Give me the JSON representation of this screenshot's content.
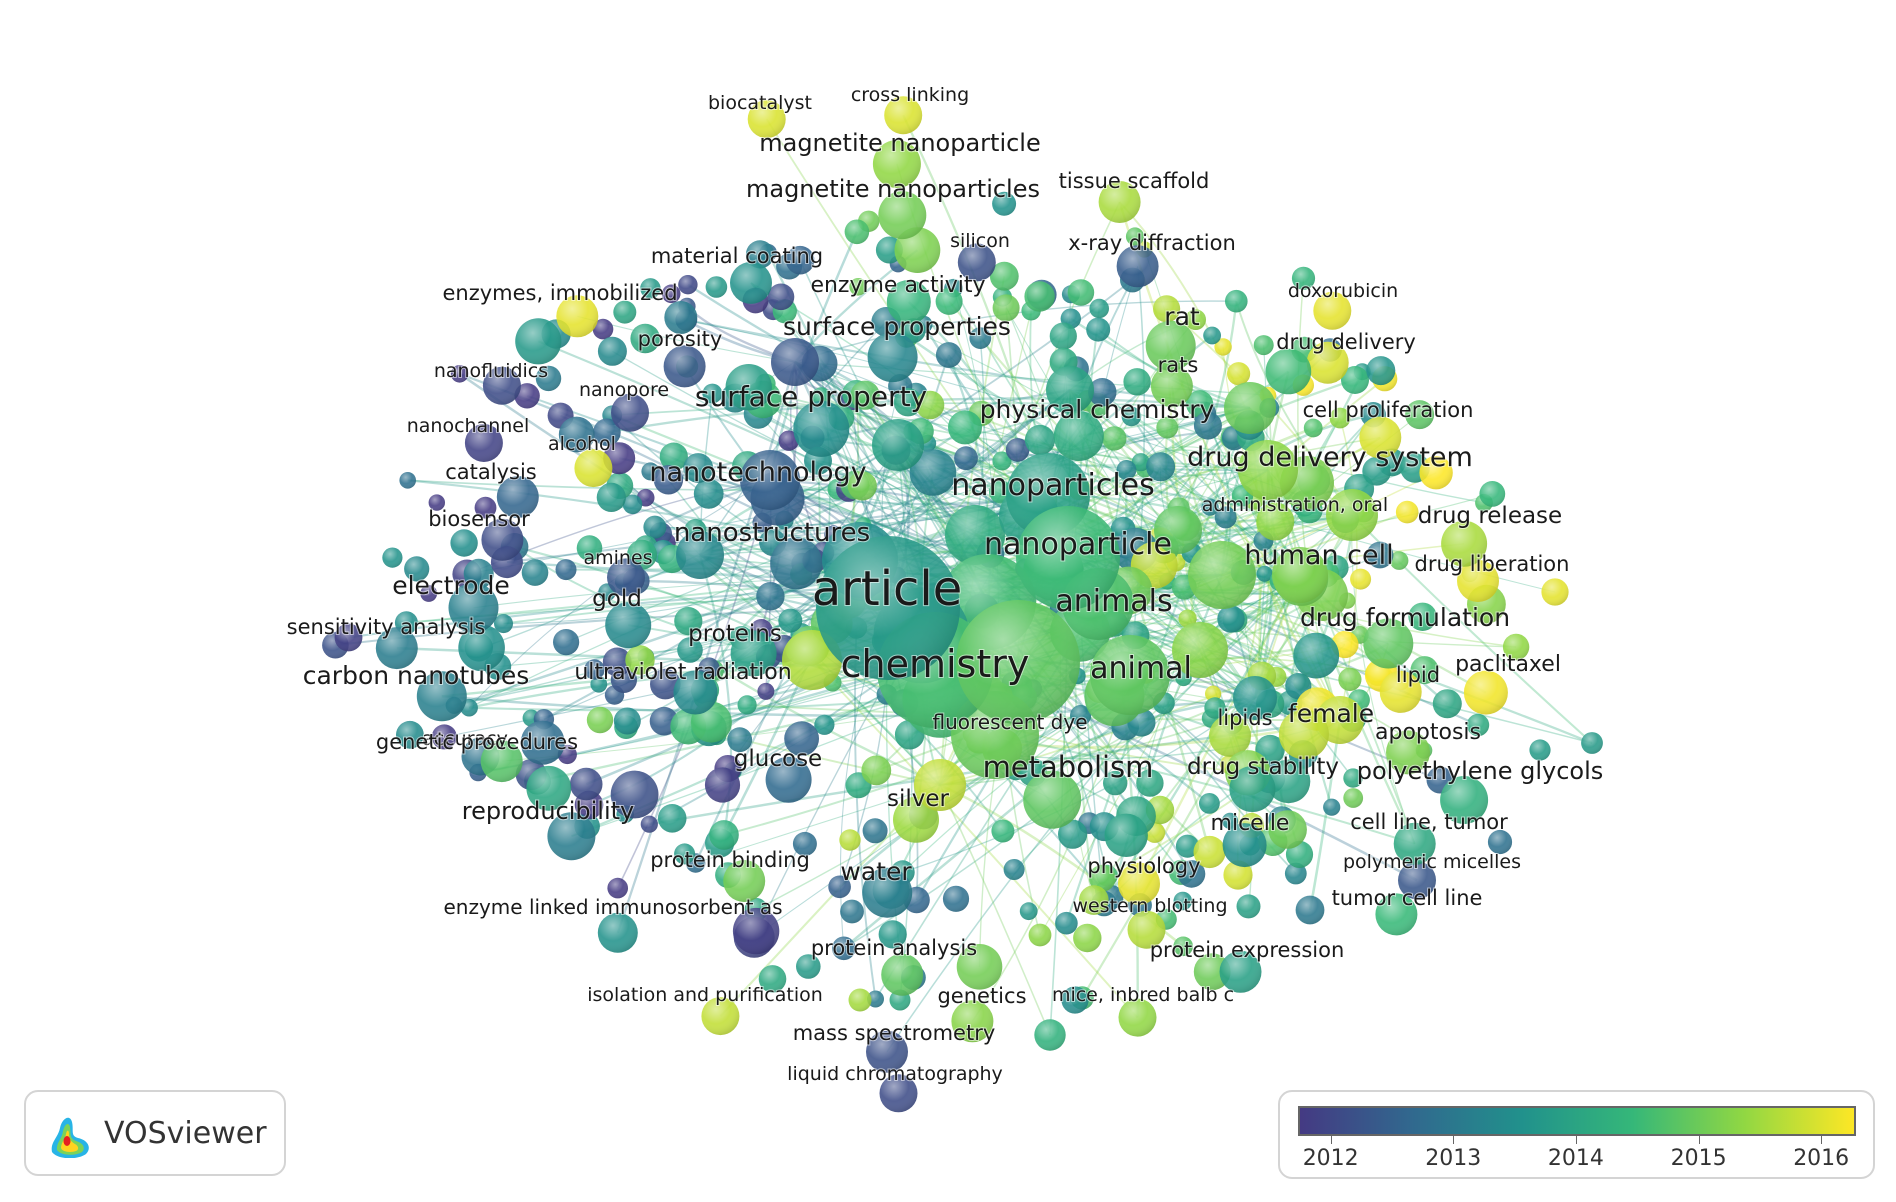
{
  "app": {
    "brand": "VOSviewer",
    "logo_icon": "vosviewer-density-logo-icon"
  },
  "scale": {
    "colors": [
      "#443a83",
      "#31688e",
      "#21918c",
      "#35b779",
      "#90d743",
      "#fde725"
    ],
    "ticks": [
      "2012",
      "2013",
      "2014",
      "2015",
      "2016"
    ],
    "range": [
      2011.75,
      2016.3
    ]
  },
  "labels": [
    "biocatalyst",
    "cross linking",
    "magnetite nanoparticle",
    "magnetite nanoparticles",
    "tissue scaffold",
    "silicon",
    "x-ray diffraction",
    "material coating",
    "enzymes, immobilized",
    "enzyme activity",
    "doxorubicin",
    "surface properties",
    "rat",
    "porosity",
    "drug delivery",
    "rats",
    "nanofluidics",
    "nanopore",
    "surface property",
    "physical chemistry",
    "cell proliferation",
    "nanochannel",
    "alcohol",
    "catalysis",
    "drug delivery system",
    "nanotechnology",
    "nanoparticles",
    "administration, oral",
    "biosensor",
    "drug release",
    "nanostructures",
    "nanoparticle",
    "amines",
    "human cell",
    "drug liberation",
    "electrode",
    "article",
    "gold",
    "animals",
    "sensitivity analysis",
    "drug formulation",
    "proteins",
    "chemistry",
    "animal",
    "carbon nanotubes",
    "ultraviolet radiation",
    "lipid",
    "paclitaxel",
    "fluorescent dye",
    "lipids",
    "female",
    "accuracy",
    "genetic procedures",
    "apoptosis",
    "glucose",
    "metabolism",
    "drug stability",
    "polyethylene glycols",
    "silver",
    "reproducibility",
    "micelle",
    "cell line, tumor",
    "protein binding",
    "physiology",
    "polymeric micelles",
    "water",
    "tumor cell line",
    "enzyme linked immunosorbent as",
    "western blotting",
    "protein analysis",
    "protein expression",
    "isolation and purification",
    "genetics",
    "mice, inbred balb c",
    "mass spectrometry",
    "liquid chromatography"
  ],
  "label_years": [
    2016,
    2016,
    2015.4,
    2015.1,
    2015.6,
    2012.2,
    2012.4,
    2013.6,
    2016.1,
    2014.4,
    2016.1,
    2013.3,
    2015,
    2012.3,
    2016,
    2015.1,
    2012.1,
    2012.1,
    2013.5,
    2014.2,
    2016,
    2011.9,
    2016,
    2012.6,
    2015.2,
    2012.5,
    2013.9,
    2015.4,
    2012.1,
    2015.6,
    2012.9,
    2014.5,
    2012.3,
    2015.1,
    2016.1,
    2013.2,
    2013.8,
    2013.4,
    2014.7,
    2013.1,
    2014.9,
    2013.9,
    2014.6,
    2014.9,
    2013.2,
    2013.4,
    2016.1,
    2016.2,
    2015.4,
    2015.6,
    2015.8,
    2012.9,
    2014.8,
    2015.2,
    2012.7,
    2014.9,
    2013.9,
    2014.3,
    2015.5,
    2013.1,
    2013.5,
    2014.1,
    2015.1,
    2016.1,
    2012.3,
    2013.1,
    2014.5,
    2013.6,
    2015.7,
    2014.9,
    2013.9,
    2015.8,
    2015.3,
    2015.4,
    2012.2,
    2012.1
  ],
  "central_terms": [
    "article",
    "chemistry",
    "animals",
    "animal",
    "nanoparticle",
    "nanoparticles",
    "metabolism"
  ]
}
